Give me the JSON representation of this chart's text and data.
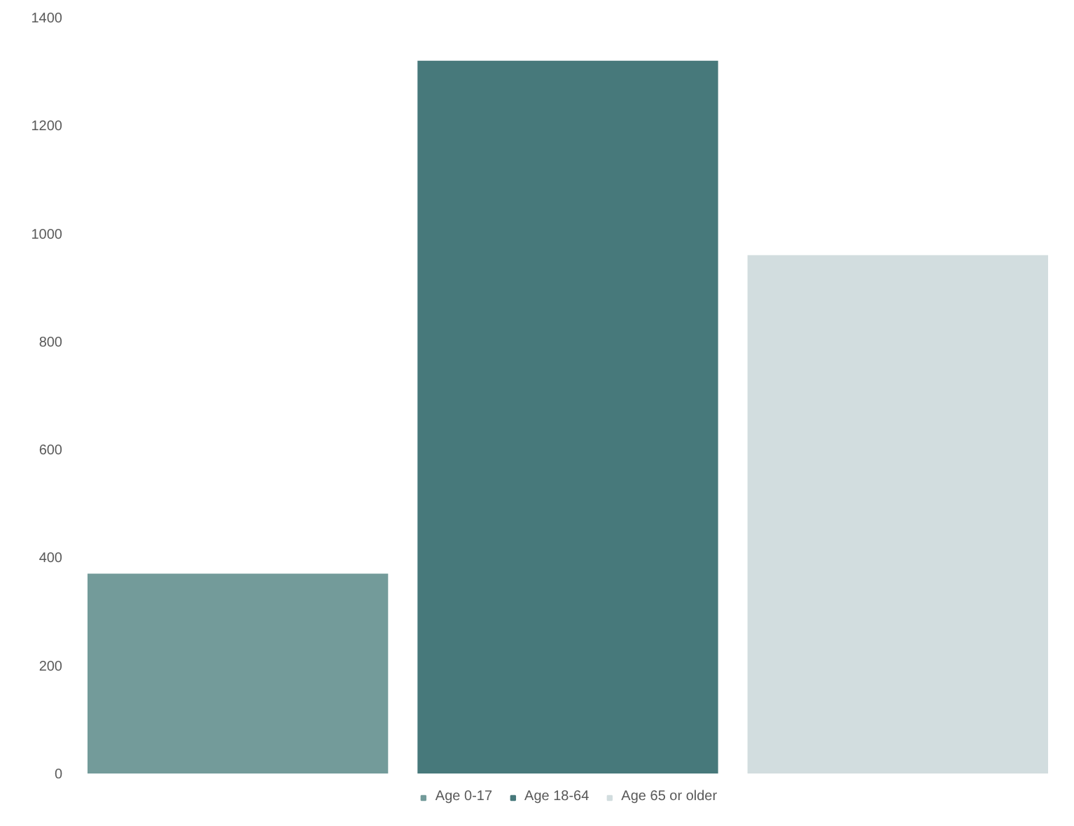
{
  "chart_data": {
    "type": "bar",
    "categories": [
      null
    ],
    "series": [
      {
        "name": "Age 0-17",
        "color": "#739b9a",
        "values": [
          370
        ]
      },
      {
        "name": "Age 18-64",
        "color": "#47797b",
        "values": [
          1320
        ]
      },
      {
        "name": "Age 65 or older",
        "color": "#d2dddf",
        "values": [
          960
        ]
      }
    ],
    "ylim": [
      0,
      1400
    ],
    "yticks": [
      0,
      200,
      400,
      600,
      800,
      1000,
      1200,
      1400
    ],
    "grid": false,
    "legend": "bottom"
  }
}
